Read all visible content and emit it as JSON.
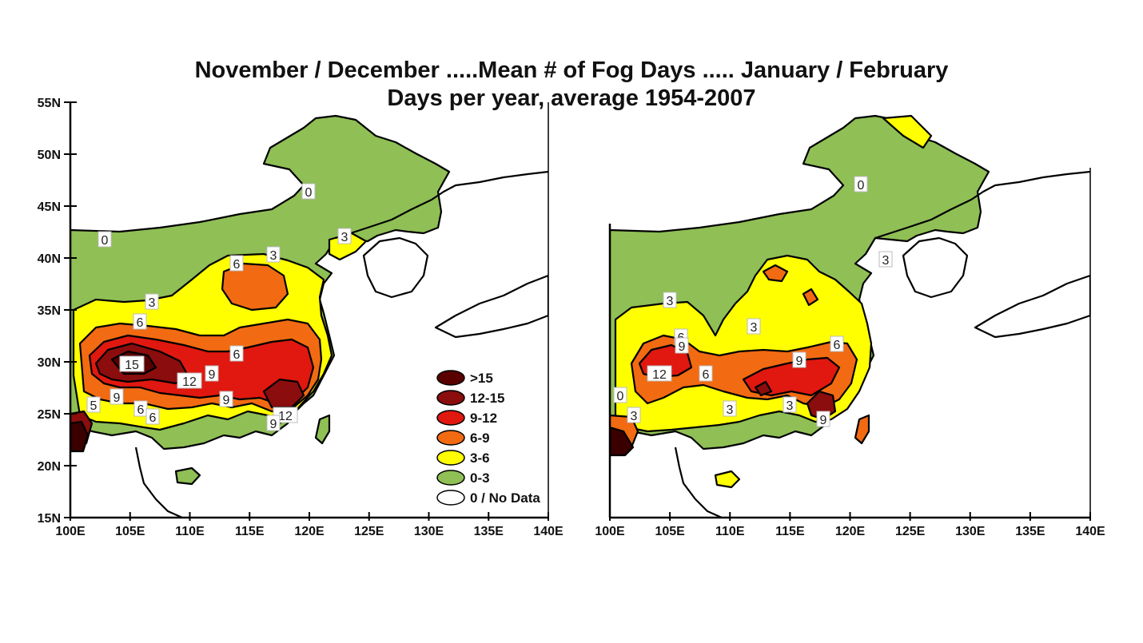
{
  "title": "November / December .....Mean # of Fog Days ..... January / February",
  "subtitle": "Days per year, average 1954-2007",
  "lat_ticks": [
    "55N",
    "50N",
    "45N",
    "40N",
    "35N",
    "30N",
    "25N",
    "20N",
    "15N"
  ],
  "lon_ticks": [
    "100E",
    "105E",
    "110E",
    "115E",
    "120E",
    "125E",
    "130E",
    "135E",
    "140E"
  ],
  "legend": [
    {
      "label": ">15",
      "color": "#5a0000"
    },
    {
      "label": "12-15",
      "color": "#8b0d0d"
    },
    {
      "label": "9-12",
      "color": "#e0180f"
    },
    {
      "label": "6-9",
      "color": "#f26a12"
    },
    {
      "label": "3-6",
      "color": "#ffff00"
    },
    {
      "label": "0-3",
      "color": "#8fbf55"
    },
    {
      "label": "0 / No Data",
      "color": "#ffffff"
    }
  ],
  "left_contour_labels": [
    "0",
    "0",
    "3",
    "6",
    "3",
    "3",
    "6",
    "6",
    "15",
    "9",
    "12",
    "9",
    "9",
    "6",
    "6",
    "12",
    "9",
    "5"
  ],
  "right_contour_labels": [
    "0",
    "3",
    "3",
    "3",
    "6",
    "9",
    "12",
    "6",
    "9",
    "6",
    "0",
    "3",
    "3",
    "3",
    "9"
  ]
}
